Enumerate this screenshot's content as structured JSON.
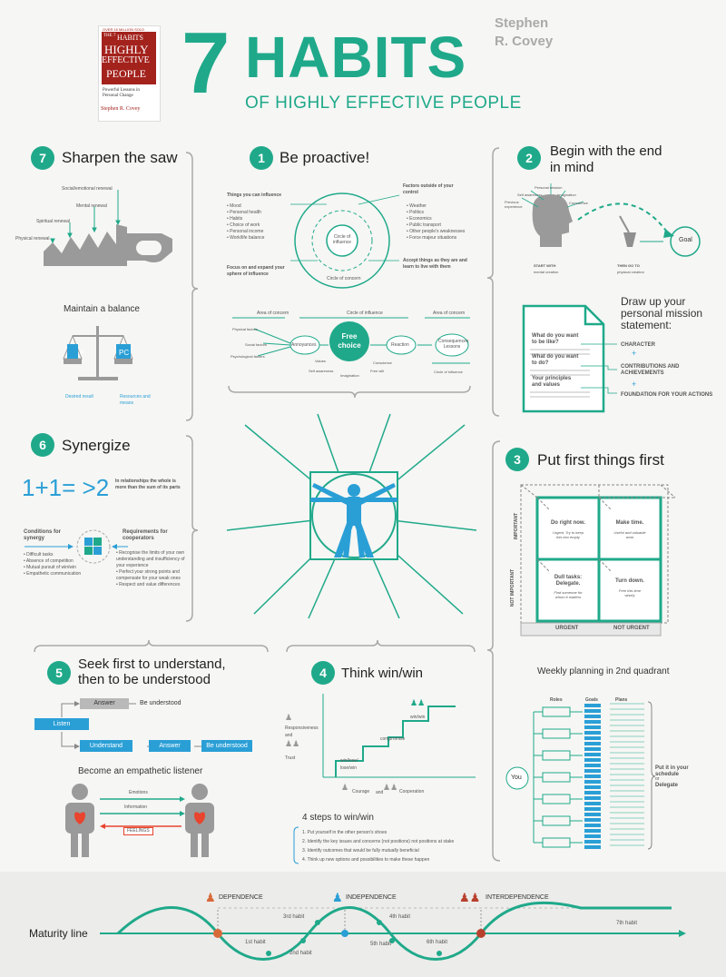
{
  "header": {
    "book_badge": "OVER 15 MILLION SOLD",
    "book_line1": "THE 7",
    "book_line2": "HABITS",
    "book_line3": "OF",
    "book_line4": "HIGHLY",
    "book_line5": "EFFECTIVE",
    "book_line6": "PEOPLE",
    "book_sub": "Powerful Lessons in Personal Change",
    "book_author": "Stephen R. Covey",
    "title_num": "7",
    "title_word": "HABITS",
    "subtitle": "OF HIGHLY EFFECTIVE PEOPLE",
    "author_line1": "Stephen",
    "author_line2": "R. Covey"
  },
  "h7": {
    "num": "7",
    "title": "Sharpen the saw",
    "renewal": [
      "Social/emotional renewal",
      "Mental renewal",
      "Spiritual renewal",
      "Physical renewal"
    ],
    "balance_title": "Maintain a balance",
    "scale_left": "P",
    "scale_right": "PC",
    "desired": "Desired result",
    "resources": "Resources and means"
  },
  "h1": {
    "num": "1",
    "title": "Be proactive!",
    "left_title": "Things you can influence",
    "left_items": [
      "• Mood",
      "• Personal health",
      "• Habits",
      "• Choice of work",
      "• Personal income",
      "• Work/life balance"
    ],
    "left_foot": "Focus on and expand your sphere of influence",
    "right_title": "Factors outside of your control",
    "right_items": [
      "• Weather",
      "• Politics",
      "• Economics",
      "• Public transport",
      "• Other people's weaknesses",
      "• Force majeur situations"
    ],
    "right_foot": "Accept things as they are and learn to live with them",
    "circle_inner": "Circle of influence",
    "circle_outer": "Circle of concern",
    "flow_top_left": "Area of concern",
    "flow_top_mid": "Circle of influence",
    "flow_top_right": "Area of concern",
    "factors": [
      "Physical factors",
      "Social factors",
      "Psychological factors"
    ],
    "annoyances": "Annoyances",
    "free_choice": "Free choice",
    "reaction": "Reaction",
    "consequences": "Consequences Lessons",
    "values": "Values",
    "self_awareness": "Self awareness",
    "imagination": "Imagination",
    "conscience": "Conscience",
    "free_will": "Free will",
    "bottom_right": "Circle of influence"
  },
  "h2": {
    "num": "2",
    "title_l1": "Begin with the end",
    "title_l2": "in mind",
    "labels": [
      "Personal mission",
      "Self awareness",
      "Imagination",
      "Previous experience",
      "Conscience"
    ],
    "start": "START WITH",
    "start_sub": "mental creation",
    "then": "THEN GO TO",
    "then_sub": "physical creation",
    "goal": "Goal",
    "draw_l1": "Draw up your",
    "draw_l2": "personal mission",
    "draw_l3": "statement:",
    "q1": "What do you want to be like?",
    "q2": "What do you want to do?",
    "q3": "Your principles and values",
    "a1": "CHARACTER",
    "a2": "CONTRIBUTIONS AND ACHIEVEMENTS",
    "a3": "FOUNDATION FOR YOUR ACTIONS",
    "plus": "+"
  },
  "h6": {
    "num": "6",
    "title": "Synergize",
    "equation": "1+1= >2",
    "eq_text": "In relationships the whole is more than the sum of its parts",
    "cond_title": "Conditions for synergy",
    "cond_items": [
      "• Difficult tasks",
      "• Absence of competition",
      "• Mutual pursuit of win/win",
      "• Empathetic communication"
    ],
    "req_title": "Requirements for cooperators",
    "req_items": [
      "• Recognise the limits of your own understanding and insufficiency of your experience",
      "• Perfect your strong points and compensate for your weak ones",
      "• Respect and value differences"
    ]
  },
  "h3": {
    "num": "3",
    "title": "Put first things first",
    "important": "IMPORTANT",
    "not_important": "NOT IMPORTANT",
    "urgent": "URGENT",
    "not_urgent": "NOT URGENT",
    "q1_title": "Do right now.",
    "q1_sub": "Urgent. Try to keep this box empty",
    "q2_title": "Make time.",
    "q2_sub": "Useful and valuable work",
    "q3_title": "Dull tasks: Delegate.",
    "q3_sub": "Find someone for whom it matters",
    "q4_title": "Turn down.",
    "q4_sub": "Free this time wisely",
    "weekly": "Weekly planning in 2nd quadrant",
    "roles": "Roles",
    "goals": "Goals",
    "plans": "Plans",
    "you": "You",
    "put_it": "Put it in your schedule",
    "or": "or",
    "delegate": "Delegate"
  },
  "h5": {
    "num": "5",
    "title_l1": "Seek first to understand,",
    "title_l2": "then to be understood",
    "answer": "Answer",
    "be_understood": "Be understood",
    "listen": "Listen",
    "understand": "Understand",
    "answer2": "Answer",
    "be_understood2": "Be understood",
    "empathetic": "Become an empathetic listener",
    "emotions": "Emotions",
    "information": "Information",
    "feelings": "FEELINGS"
  },
  "h4": {
    "num": "4",
    "title": "Think win/win",
    "win_win": "win/win",
    "compromise": "compromise",
    "win_lose": "win/lose/",
    "lose_win": "lose/win",
    "responsiveness": "Responsiveness",
    "and": "and",
    "trust": "Trust",
    "courage": "Courage",
    "and2": "and",
    "cooperation": "Cooperation",
    "steps_title": "4 steps to win/win",
    "steps": [
      "1. Put yourself in the other person's shoes",
      "2. Identify the key issues and concerns (not positions) not positions at stake",
      "3. Identify outcomes that would be fully mutually beneficial",
      "4. Think up new options and possibilities to make these happen"
    ]
  },
  "maturity": {
    "label": "Maturity line",
    "dependence": "DEPENDENCE",
    "independence": "INDEPENDENCE",
    "interdependence": "INTERDEPENDENCE",
    "habits": [
      "1st habit",
      "2nd habit",
      "3rd habit",
      "4th habit",
      "5th habit",
      "6th habit",
      "7th habit"
    ]
  },
  "colors": {
    "teal": "#1fa98a",
    "orange": "#d86a3a",
    "blue": "#2a9fd6",
    "red": "#b8412d",
    "grey": "#8f8f8f"
  }
}
